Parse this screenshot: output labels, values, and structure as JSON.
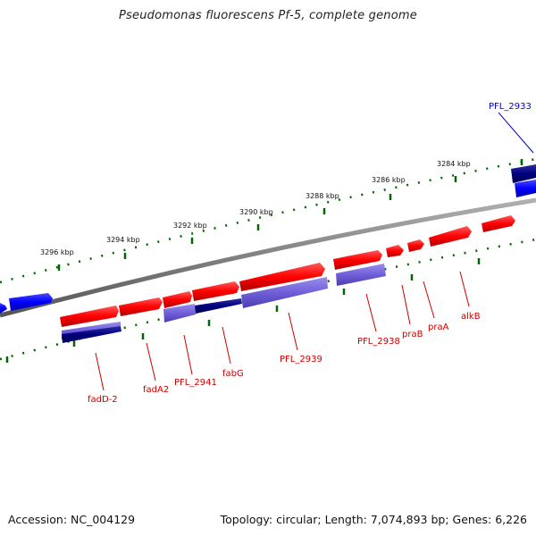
{
  "title": "Pseudomonas fluorescens Pf-5, complete genome",
  "accession": "Accession: NC_004129",
  "summary": "Topology: circular; Length: 7,074,893 bp; Genes: 6,226",
  "scale_ticks": [
    "3284 kbp",
    "3286 kbp",
    "3288 kbp",
    "3290 kbp",
    "3292 kbp",
    "3294 kbp",
    "3296 kbp"
  ],
  "gene_labels": [
    {
      "text": "PFL_2933",
      "color": "#0000cc"
    },
    {
      "text": "alkB",
      "color": "#cc0000"
    },
    {
      "text": "praA",
      "color": "#cc0000"
    },
    {
      "text": "praB",
      "color": "#cc0000"
    },
    {
      "text": "PFL_2938",
      "color": "#cc0000"
    },
    {
      "text": "PFL_2939",
      "color": "#cc0000"
    },
    {
      "text": "fabG",
      "color": "#cc0000"
    },
    {
      "text": "PFL_2941",
      "color": "#cc0000"
    },
    {
      "text": "fadA2",
      "color": "#cc0000"
    },
    {
      "text": "fadD-2",
      "color": "#cc0000"
    }
  ],
  "colors": {
    "forward_strand": "#ff0000",
    "reverse_strand": "#0000ff",
    "feature_light": "#7060d8",
    "feature_dark": "#000080",
    "backbone": "#808080",
    "tick_green": "#006600"
  }
}
